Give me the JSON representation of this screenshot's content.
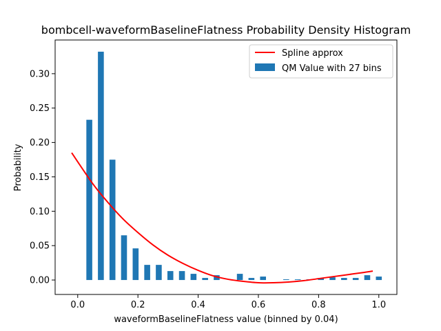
{
  "chart_data": {
    "type": "bar",
    "title": "bombcell-waveformBaselineFlatness Probability Density Histogram",
    "xlabel": "waveformBaselineFlatness value (binned by 0.04)",
    "ylabel": "Probability",
    "xlim": [
      -0.075,
      1.06
    ],
    "ylim": [
      -0.021,
      0.349
    ],
    "xticks": [
      0.0,
      0.2,
      0.4,
      0.6,
      0.8,
      1.0
    ],
    "xtick_labels": [
      "0.0",
      "0.2",
      "0.4",
      "0.6",
      "0.8",
      "1.0"
    ],
    "yticks": [
      0.0,
      0.05,
      0.1,
      0.15,
      0.2,
      0.25,
      0.3
    ],
    "ytick_labels": [
      "0.00",
      "0.05",
      "0.10",
      "0.15",
      "0.20",
      "0.25",
      "0.30"
    ],
    "grid": false,
    "legend_position": "top-right",
    "bar_color": "#1f77b4",
    "line_color": "#ff0000",
    "series": [
      {
        "name": "QM Value with 27 bins",
        "kind": "bar",
        "bar_width": 0.0196,
        "x": [
          0.0385,
          0.0769,
          0.1154,
          0.1538,
          0.1923,
          0.2308,
          0.2692,
          0.3077,
          0.3462,
          0.3846,
          0.4231,
          0.4615,
          0.5,
          0.5385,
          0.5769,
          0.6154,
          0.6538,
          0.6923,
          0.7308,
          0.7692,
          0.8077,
          0.8462,
          0.8846,
          0.9231,
          0.9615,
          1.0
        ],
        "values": [
          0.233,
          0.332,
          0.175,
          0.065,
          0.046,
          0.022,
          0.022,
          0.013,
          0.013,
          0.009,
          0.003,
          0.007,
          0.0,
          0.009,
          0.003,
          0.005,
          0.0,
          0.001,
          0.001,
          0.001,
          0.003,
          0.004,
          0.003,
          0.003,
          0.007,
          0.005
        ]
      },
      {
        "name": "Spline approx",
        "kind": "line",
        "x": [
          -0.02,
          0.05,
          0.1,
          0.15,
          0.2,
          0.25,
          0.3,
          0.35,
          0.4,
          0.45,
          0.5,
          0.55,
          0.6,
          0.65,
          0.7,
          0.75,
          0.8,
          0.85,
          0.9,
          0.95,
          0.98
        ],
        "values": [
          0.185,
          0.14,
          0.113,
          0.089,
          0.069,
          0.051,
          0.036,
          0.024,
          0.014,
          0.006,
          0.001,
          -0.002,
          -0.004,
          -0.004,
          -0.003,
          -0.001,
          0.002,
          0.005,
          0.008,
          0.011,
          0.013
        ]
      }
    ]
  }
}
